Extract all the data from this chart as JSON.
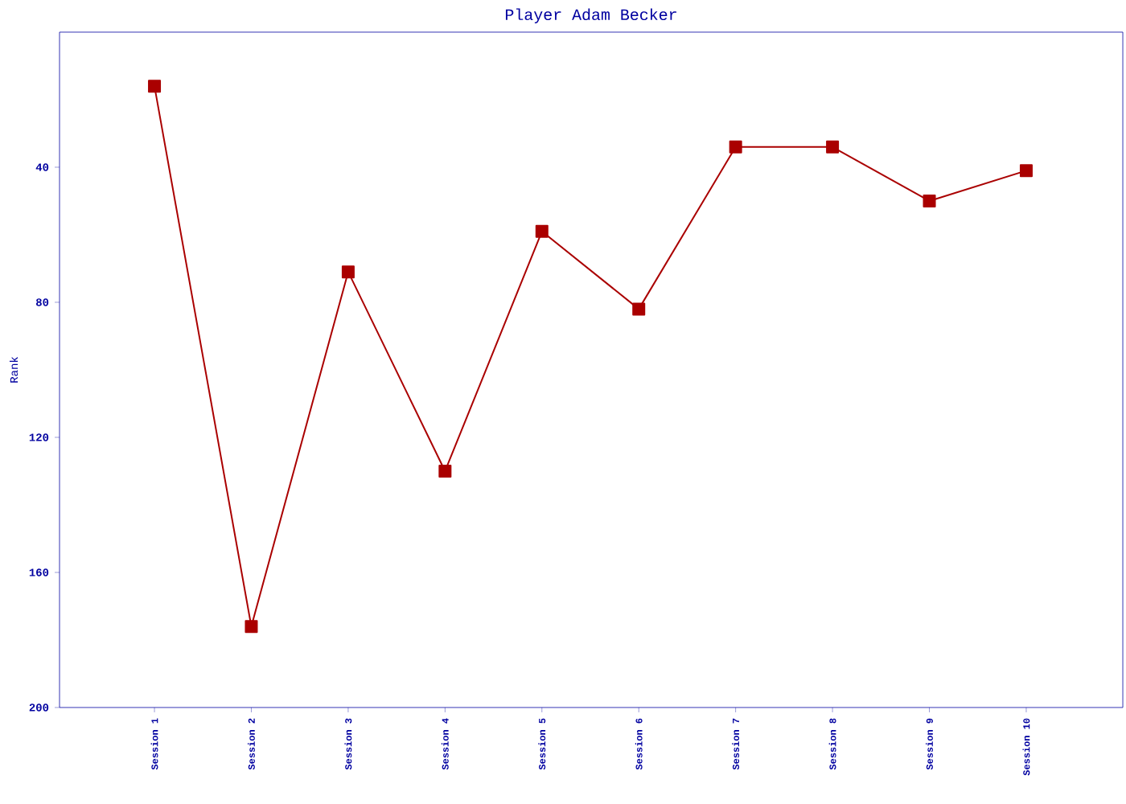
{
  "chart_data": {
    "type": "line",
    "title": "Player Adam Becker",
    "ylabel": "Rank",
    "categories": [
      "Session 1",
      "Session 2",
      "Session 3",
      "Session 4",
      "Session 5",
      "Session 6",
      "Session 7",
      "Session 8",
      "Session 9",
      "Session 10"
    ],
    "values": [
      16,
      176,
      71,
      130,
      59,
      82,
      34,
      34,
      50,
      41
    ],
    "color": "#aa0000",
    "marker": "square",
    "grid": false,
    "ylim": [
      200,
      0
    ],
    "yticks": [
      40,
      80,
      120,
      160,
      200
    ]
  }
}
